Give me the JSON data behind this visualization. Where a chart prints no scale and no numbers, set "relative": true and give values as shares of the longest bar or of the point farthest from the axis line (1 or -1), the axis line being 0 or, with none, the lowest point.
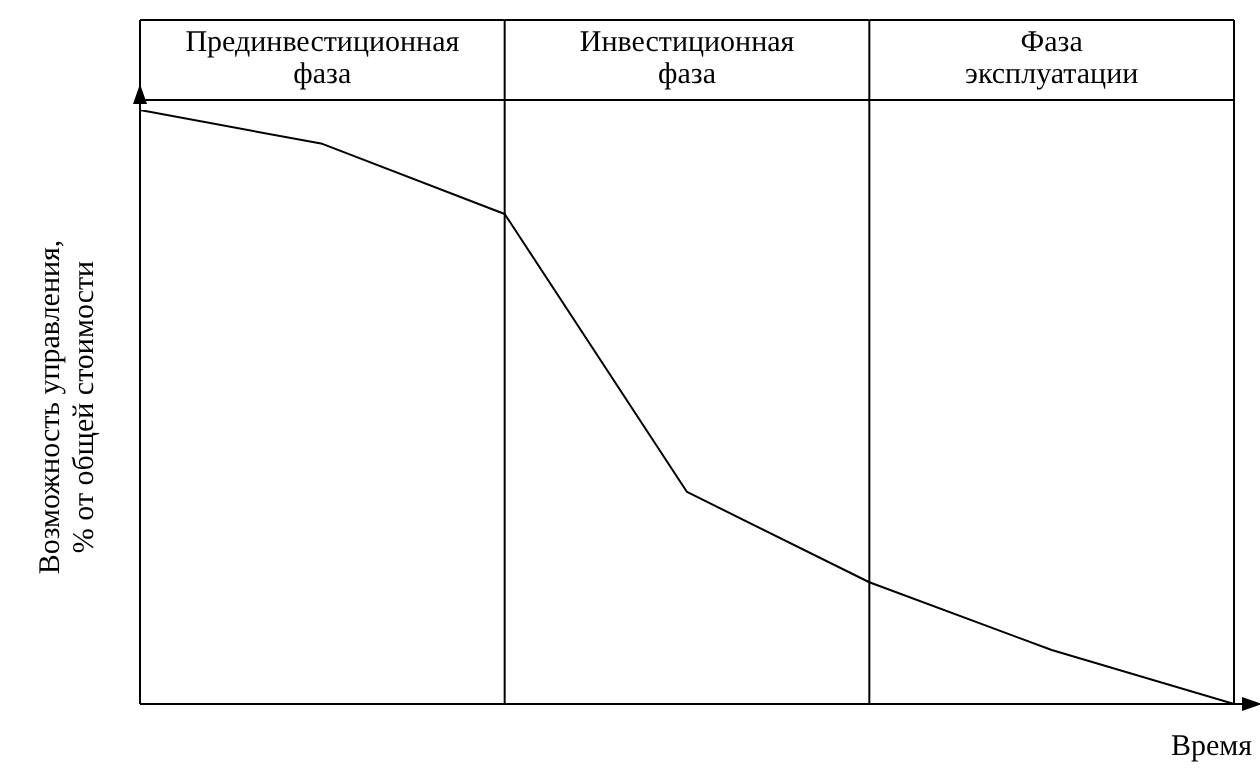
{
  "chart_data": {
    "type": "line",
    "relative": true,
    "xlabel": "Время",
    "ylabel": "Возможность управления,\n% от общей стоимости",
    "categories": [
      null,
      null,
      null,
      null,
      null,
      null,
      null
    ],
    "series": [
      {
        "color": "#000000",
        "values": [
          1,
          0.943,
          0.825,
          0.357,
          0.205,
          0.091,
          0
        ]
      }
    ],
    "marker": "none",
    "line_style": "solid",
    "legend": false,
    "annotations": [
      "Прединвестиционная\nфаза",
      "Инвестиционная\nфаза",
      "Фаза\nэксплуатации"
    ]
  }
}
